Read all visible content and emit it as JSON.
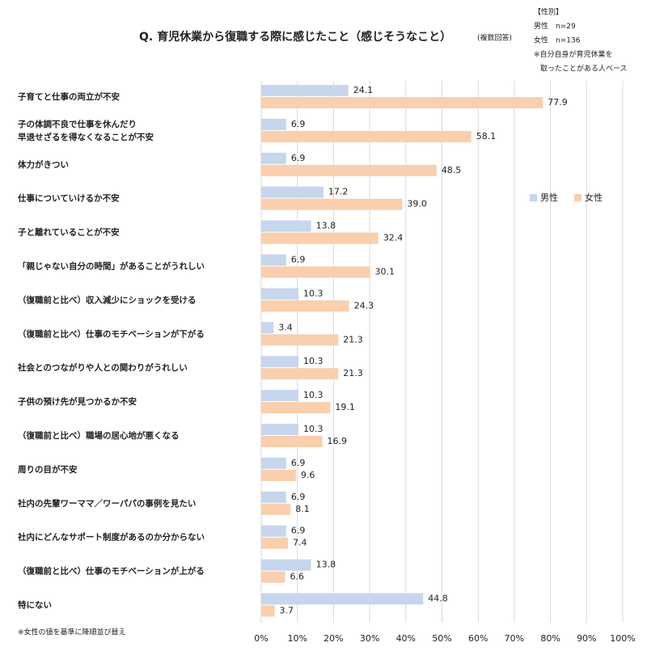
{
  "chart_data": {
    "type": "hbar",
    "title": "Q. 育児休業から復職する際に感じたこと（感じそうなこと）",
    "subtitle": "(複数回答)",
    "notes": [
      "【性別】",
      "男性　n=29",
      "女性　n=136",
      "※自分自身が育児休業を",
      "取ったことがある人ベース"
    ],
    "footnote": "※女性の値を基準に降順並び替え",
    "categories": [
      "子育てと仕事の両立が不安",
      "子の体調不良で仕事を休んだり\n早退せざるを得なくなることが不安",
      "体力がきつい",
      "仕事についていけるか不安",
      "子と離れていることが不安",
      "「親じゃない自分の時間」があることがうれしい",
      "（復職前と比べ）収入減少にショックを受ける",
      "（復職前と比べ）仕事のモチベーションが下がる",
      "社会とのつながりや人との関わりがうれしい",
      "子供の預け先が見つかるか不安",
      "（復職前と比べ）職場の居心地が悪くなる",
      "周りの目が不安",
      "社内の先輩ワーママ／ワーパパの事例を見たい",
      "社内にどんなサポート制度があるのか分からない",
      "（復職前と比べ）仕事のモチベーションが上がる",
      "特にない"
    ],
    "series": [
      {
        "name": "男性",
        "color": "#c6d6ec",
        "values": [
          24.1,
          6.9,
          6.9,
          17.2,
          13.8,
          6.9,
          10.3,
          3.4,
          10.3,
          10.3,
          10.3,
          6.9,
          6.9,
          6.9,
          13.8,
          44.8
        ],
        "value_labels": [
          "24.1",
          "6.9",
          "6.9",
          "17.2",
          "13.8",
          "6.9",
          "10.3",
          "3.4",
          "10.3",
          "10.3",
          "10.3",
          "6.9",
          "6.9",
          "6.9",
          "13.8",
          "44.8"
        ]
      },
      {
        "name": "女性",
        "color": "#f9cfae",
        "values": [
          77.9,
          58.1,
          48.5,
          39.0,
          32.4,
          30.1,
          24.3,
          21.3,
          21.3,
          19.1,
          16.9,
          9.6,
          8.1,
          7.4,
          6.6,
          3.7
        ],
        "value_labels": [
          "77.9",
          "58.1",
          "48.5",
          "39.0",
          "32.4",
          "30.1",
          "24.3",
          "21.3",
          "21.3",
          "19.1",
          "16.9",
          "9.6",
          "8.1",
          "7.4",
          "6.6",
          "3.7"
        ]
      }
    ],
    "xlim": [
      0,
      100
    ],
    "xticks": [
      {
        "value": 0,
        "label": "0%"
      },
      {
        "value": 10,
        "label": "10%"
      },
      {
        "value": 20,
        "label": "20%"
      },
      {
        "value": 30,
        "label": "30%"
      },
      {
        "value": 40,
        "label": "40%"
      },
      {
        "value": 50,
        "label": "50%"
      },
      {
        "value": 60,
        "label": "60%"
      },
      {
        "value": 70,
        "label": "70%"
      },
      {
        "value": 80,
        "label": "80%"
      },
      {
        "value": 90,
        "label": "90%"
      },
      {
        "value": 100,
        "label": "100%"
      }
    ],
    "grid": true,
    "legend": "right"
  }
}
